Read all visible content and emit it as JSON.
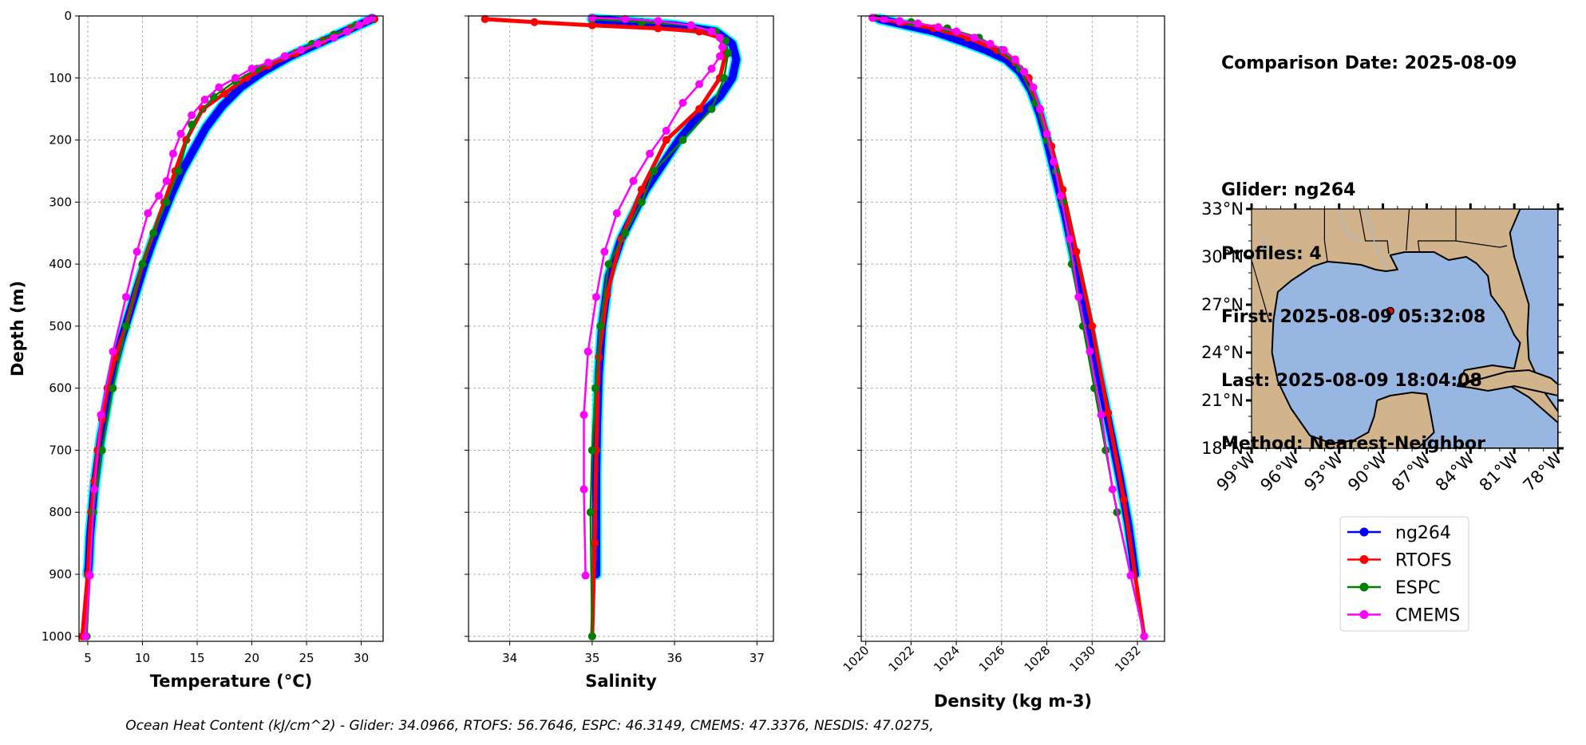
{
  "info": {
    "comparison_date": "Comparison Date: 2025-08-09",
    "glider": "Glider: ng264",
    "profiles": "Profiles: 4",
    "first": "First: 2025-08-09 05:32:08",
    "last": "Last: 2025-08-09 18:04:08",
    "method": "Method: Nearest-Neighbor"
  },
  "footer": "Ocean Heat Content (kJ/cm^2) - Glider: 34.0966,  RTOFS: 56.7646,  ESPC: 46.3149,  CMEMS: 47.3376,  NESDIS: 47.0275,",
  "colors": {
    "ng264": "#0000ff",
    "ng264_shade": "#00ffff",
    "RTOFS": "#ff0000",
    "ESPC": "#008000",
    "CMEMS": "#ff00ff",
    "land": "#d2b48c",
    "ocean": "#97b6e1",
    "grid": "#b0b0b0"
  },
  "legend": [
    "ng264",
    "RTOFS",
    "ESPC",
    "CMEMS"
  ],
  "chart_data": [
    {
      "type": "line",
      "xlabel": "Temperature (°C)",
      "ylabel": "Depth (m)",
      "xlim": [
        4.2,
        32
      ],
      "ylim": [
        1008,
        0
      ],
      "xticks": [
        5,
        10,
        15,
        20,
        25,
        30
      ],
      "yticks": [
        0,
        100,
        200,
        300,
        400,
        500,
        600,
        700,
        800,
        900,
        1000
      ],
      "grid": true,
      "series": [
        {
          "name": "ng264",
          "x": [
            31.0,
            28.5,
            26.0,
            23.5,
            21.0,
            19.0,
            17.3,
            15.8,
            14.7,
            13.6,
            12.7,
            11.9,
            11.0,
            10.2,
            9.5,
            8.8,
            8.1,
            7.5,
            7.0,
            6.6,
            6.2,
            5.9,
            5.6,
            5.4,
            5.2,
            5.1,
            5.0
          ],
          "y": [
            5,
            25,
            45,
            65,
            90,
            115,
            145,
            180,
            215,
            250,
            285,
            320,
            360,
            400,
            440,
            480,
            520,
            560,
            600,
            640,
            680,
            720,
            760,
            800,
            840,
            880,
            900
          ]
        },
        {
          "name": "RTOFS",
          "x": [
            31.2,
            29.0,
            26.5,
            24.0,
            21.5,
            19.5,
            17.5,
            15.5,
            14.0,
            13.0,
            12.0,
            10.0,
            8.5,
            7.5,
            6.8,
            6.3,
            5.9,
            5.6,
            5.3,
            5.0,
            4.5
          ],
          "y": [
            5,
            20,
            40,
            60,
            80,
            100,
            125,
            150,
            200,
            250,
            300,
            400,
            500,
            550,
            600,
            650,
            700,
            750,
            800,
            900,
            1000
          ]
        },
        {
          "name": "ESPC",
          "x": [
            31.0,
            29.5,
            27.5,
            25.5,
            23.0,
            20.5,
            18.5,
            16.5,
            14.5,
            13.3,
            12.2,
            11.0,
            10.0,
            8.5,
            7.3,
            6.3,
            5.5,
            4.9
          ],
          "y": [
            5,
            15,
            30,
            45,
            65,
            85,
            105,
            130,
            175,
            250,
            300,
            350,
            400,
            500,
            600,
            700,
            800,
            1000
          ]
        },
        {
          "name": "CMEMS",
          "x": [
            31.0,
            30.5,
            29.8,
            28.7,
            27.5,
            26.0,
            24.5,
            23.0,
            21.5,
            20.0,
            18.5,
            17.0,
            15.7,
            14.5,
            13.5,
            12.8,
            12.2,
            11.5,
            10.5,
            9.5,
            8.5,
            7.3,
            6.2,
            5.6,
            5.2,
            4.8
          ],
          "y": [
            3,
            8,
            15,
            25,
            35,
            45,
            55,
            65,
            75,
            85,
            100,
            115,
            135,
            160,
            190,
            222,
            266,
            290,
            318,
            380,
            453,
            541,
            643,
            763,
            902,
            1000
          ]
        }
      ]
    },
    {
      "type": "line",
      "xlabel": "Salinity",
      "xlim": [
        33.5,
        37.2
      ],
      "ylim": [
        1008,
        0
      ],
      "xticks": [
        34,
        35,
        36,
        37
      ],
      "yticks": [
        0,
        100,
        200,
        300,
        400,
        500,
        600,
        700,
        800,
        900,
        1000
      ],
      "grid": true,
      "series": [
        {
          "name": "ng264",
          "x": [
            35.0,
            36.0,
            36.5,
            36.7,
            36.75,
            36.7,
            36.55,
            36.3,
            36.05,
            35.85,
            35.65,
            35.5,
            35.35,
            35.2,
            35.12,
            35.08,
            35.06,
            35.05,
            35.05,
            35.05
          ],
          "y": [
            5,
            15,
            25,
            45,
            70,
            100,
            130,
            160,
            200,
            240,
            280,
            320,
            360,
            420,
            500,
            580,
            660,
            740,
            820,
            900
          ]
        },
        {
          "name": "RTOFS",
          "x": [
            33.7,
            34.3,
            35.0,
            35.8,
            36.3,
            36.55,
            36.62,
            36.55,
            36.3,
            35.9,
            35.6,
            35.35,
            35.18,
            35.08,
            35.05,
            35.03,
            35.0
          ],
          "y": [
            5,
            10,
            15,
            20,
            25,
            35,
            60,
            100,
            150,
            200,
            280,
            360,
            450,
            550,
            700,
            850,
            1000
          ]
        },
        {
          "name": "ESPC",
          "x": [
            35.0,
            35.6,
            36.2,
            36.5,
            36.62,
            36.65,
            36.6,
            36.45,
            36.1,
            35.75,
            35.6,
            35.4,
            35.2,
            35.1,
            35.04,
            35.0,
            34.98,
            35.0
          ],
          "y": [
            5,
            10,
            15,
            25,
            40,
            60,
            100,
            150,
            200,
            250,
            300,
            350,
            400,
            500,
            600,
            700,
            800,
            1000
          ]
        },
        {
          "name": "CMEMS",
          "x": [
            35.0,
            35.4,
            35.8,
            36.2,
            36.45,
            36.55,
            36.58,
            36.55,
            36.45,
            36.3,
            36.1,
            35.9,
            35.7,
            35.5,
            35.3,
            35.15,
            35.05,
            34.95,
            34.9,
            34.9,
            34.92
          ],
          "y": [
            3,
            5,
            8,
            15,
            25,
            35,
            50,
            65,
            85,
            110,
            140,
            185,
            222,
            266,
            318,
            380,
            453,
            541,
            643,
            763,
            902
          ]
        }
      ]
    },
    {
      "type": "line",
      "xlabel": "Density (kg m-3)",
      "xlim": [
        1019.8,
        1033.2
      ],
      "ylim": [
        1008,
        0
      ],
      "xticks": [
        1020,
        1022,
        1024,
        1026,
        1028,
        1030,
        1032
      ],
      "yticks": [
        0,
        100,
        200,
        300,
        400,
        500,
        600,
        700,
        800,
        900,
        1000
      ],
      "grid": true,
      "series": [
        {
          "name": "ng264",
          "x": [
            1020.6,
            1021.8,
            1023.0,
            1024.2,
            1025.3,
            1026.2,
            1026.8,
            1027.3,
            1027.7,
            1028.0,
            1028.4,
            1028.8,
            1029.2,
            1029.7,
            1030.2,
            1030.7,
            1031.2,
            1031.6,
            1031.9
          ],
          "y": [
            5,
            15,
            25,
            40,
            55,
            70,
            90,
            120,
            160,
            200,
            260,
            320,
            390,
            470,
            560,
            650,
            740,
            820,
            900
          ]
        },
        {
          "name": "RTOFS",
          "x": [
            1020.3,
            1021.5,
            1023.0,
            1024.5,
            1025.8,
            1026.6,
            1027.2,
            1027.7,
            1028.2,
            1028.7,
            1029.3,
            1030.0,
            1030.7,
            1031.4,
            1032.3
          ],
          "y": [
            3,
            10,
            20,
            35,
            55,
            75,
            100,
            150,
            210,
            280,
            380,
            500,
            640,
            780,
            1000
          ]
        },
        {
          "name": "ESPC",
          "x": [
            1020.4,
            1022.0,
            1023.6,
            1025.0,
            1026.0,
            1026.8,
            1027.5,
            1028.0,
            1028.4,
            1028.7,
            1029.1,
            1029.6,
            1030.1,
            1030.6,
            1031.1,
            1032.3
          ],
          "y": [
            3,
            10,
            20,
            35,
            55,
            85,
            140,
            200,
            250,
            300,
            400,
            500,
            600,
            700,
            800,
            1000
          ]
        },
        {
          "name": "CMEMS",
          "x": [
            1020.3,
            1020.8,
            1021.5,
            1022.3,
            1023.2,
            1024.0,
            1024.8,
            1025.5,
            1026.1,
            1026.6,
            1027.0,
            1027.4,
            1027.7,
            1028.0,
            1028.3,
            1028.6,
            1029.0,
            1029.4,
            1029.9,
            1030.4,
            1030.9,
            1031.7,
            1032.3
          ],
          "y": [
            3,
            5,
            8,
            12,
            18,
            25,
            35,
            45,
            55,
            70,
            90,
            115,
            150,
            190,
            235,
            290,
            360,
            453,
            541,
            643,
            763,
            902,
            1000
          ]
        }
      ]
    },
    {
      "type": "map",
      "lon_ticks": [
        "99°W",
        "96°W",
        "93°W",
        "90°W",
        "87°W",
        "84°W",
        "81°W",
        "78°W"
      ],
      "lat_ticks": [
        "18°N",
        "21°N",
        "24°N",
        "27°N",
        "30°N",
        "33°N"
      ],
      "lon_range": [
        -99,
        -78
      ],
      "lat_range": [
        18,
        33
      ],
      "point": {
        "lon": -89.5,
        "lat": 26.6
      }
    }
  ]
}
